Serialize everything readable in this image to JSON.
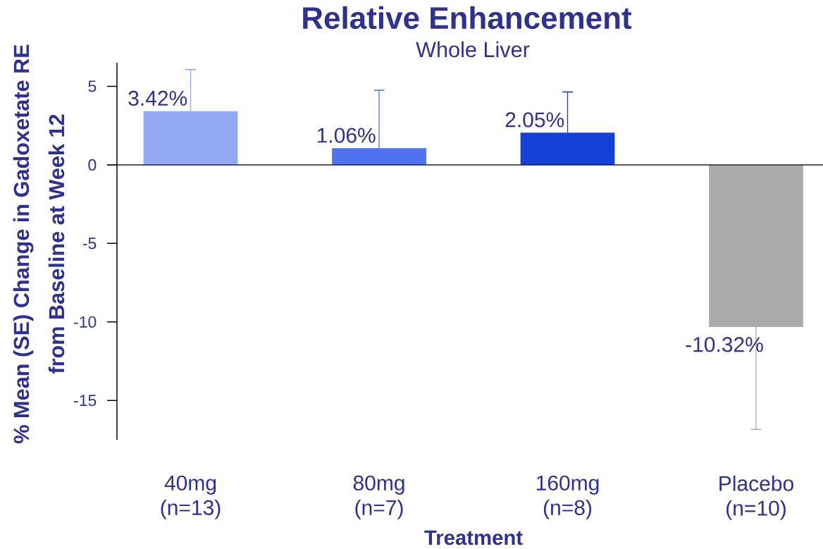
{
  "chart_data": {
    "type": "bar",
    "title": "Relative Enhancement",
    "subtitle": "Whole Liver",
    "xlabel": "Treatment",
    "ylabel": "% Mean (SE) Change in Gadoxetate RE from Baseline at Week 12",
    "categories": [
      "40mg (n=13)",
      "80mg (n=7)",
      "160mg (n=8)",
      "Placebo (n=10)"
    ],
    "values": [
      3.42,
      1.06,
      2.05,
      -10.32
    ],
    "colors": [
      "#94a9f4",
      "#4f72ee",
      "#1440d8",
      "#ababab"
    ],
    "errors": [
      [
        3.42,
        6.06
      ],
      [
        1.06,
        4.75
      ],
      [
        2.05,
        4.64
      ],
      [
        -16.84,
        -10.32
      ]
    ],
    "value_labels": [
      "3.42%",
      "1.06%",
      "2.05%",
      "-10.32%"
    ],
    "ylim": [
      -17.5,
      6.5
    ],
    "yticks": [
      -15,
      -10,
      -5,
      0,
      5
    ],
    "ref_lines": [
      {
        "axis": "y",
        "value": 0,
        "color": "#222222"
      }
    ]
  }
}
